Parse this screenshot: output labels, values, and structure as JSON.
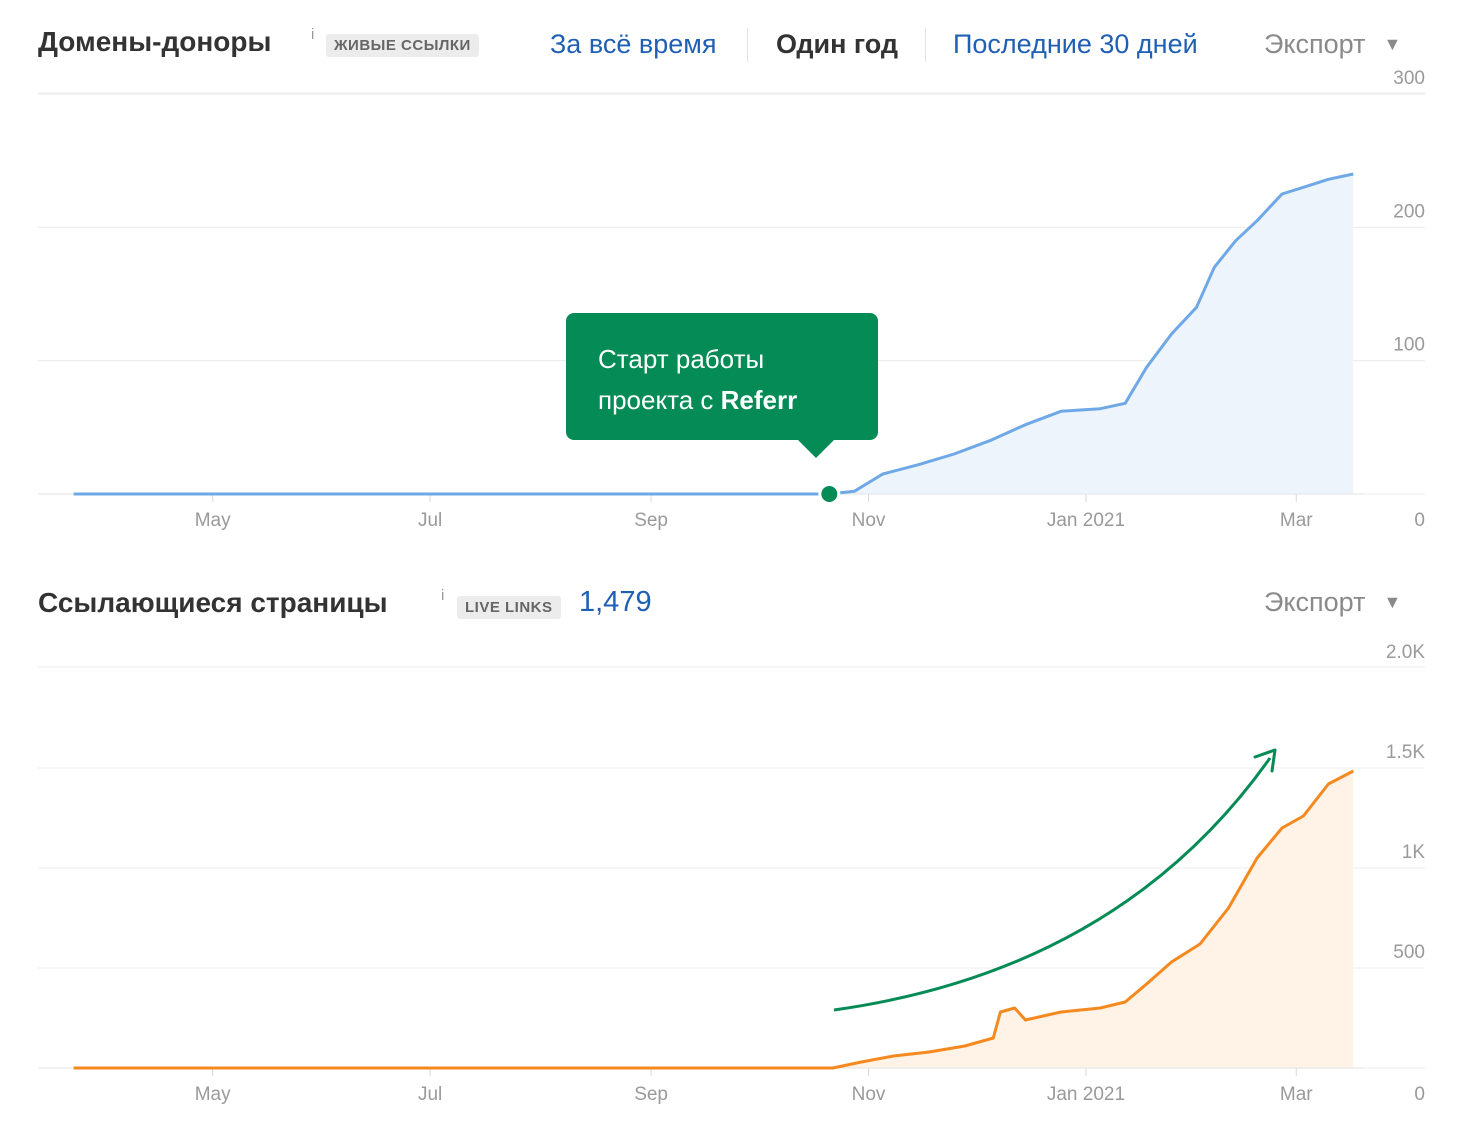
{
  "panel1": {
    "title": "Домены-доноры",
    "info": "i",
    "badge": "ЖИВЫЕ ССЫЛКИ",
    "tabs": [
      "За всё время",
      "Один год",
      "Последние 30 дней"
    ],
    "active_tab": "Один год",
    "export": "Экспорт"
  },
  "tooltip": {
    "line1": "Старт работы",
    "line2_prefix": "проекта с ",
    "line2_bold": "Referr",
    "accent": "#058b55"
  },
  "panel2": {
    "title": "Ссылающиеся страницы",
    "info": "i",
    "badge": "LIVE LINKS",
    "count": "1,479",
    "export": "Экспорт"
  },
  "chart_data": [
    {
      "type": "area",
      "title": "Домены-доноры",
      "x_labels": [
        "May",
        "Jul",
        "Sep",
        "Nov",
        "Jan 2021",
        "Mar"
      ],
      "y_ticks": [
        "0",
        "100",
        "200",
        "300"
      ],
      "ylim": [
        0,
        300
      ],
      "color": "#6fa8e6",
      "fill": "#eef4fc",
      "grid": true,
      "annotation_marker": "2020-10-21",
      "series": [
        {
          "x": [
            "2020-03-23",
            "2020-10-21",
            "2020-10-28",
            "2020-11-05",
            "2020-11-15",
            "2020-11-25",
            "2020-12-05",
            "2020-12-15",
            "2020-12-25",
            "2021-01-05",
            "2021-01-12",
            "2021-01-18",
            "2021-01-25",
            "2021-02-01",
            "2021-02-06",
            "2021-02-12",
            "2021-02-18",
            "2021-02-25",
            "2021-03-03",
            "2021-03-10",
            "2021-03-17"
          ],
          "y": [
            0,
            0,
            2,
            15,
            22,
            30,
            40,
            52,
            62,
            64,
            68,
            95,
            120,
            140,
            170,
            190,
            205,
            225,
            230,
            236,
            240
          ]
        }
      ]
    },
    {
      "type": "area",
      "title": "Ссылающиеся страницы",
      "x_labels": [
        "May",
        "Jul",
        "Sep",
        "Nov",
        "Jan 2021",
        "Mar"
      ],
      "y_ticks": [
        "0",
        "500",
        "1K",
        "1.5K",
        "2.0K"
      ],
      "ylim": [
        0,
        2000
      ],
      "color": "#f5891f",
      "fill": "#fef3e6",
      "grid": true,
      "trend_arrow_color": "#058b55",
      "series": [
        {
          "x": [
            "2020-03-23",
            "2020-10-22",
            "2020-10-30",
            "2020-11-08",
            "2020-11-18",
            "2020-11-28",
            "2020-12-06",
            "2020-12-08",
            "2020-12-12",
            "2020-12-15",
            "2020-12-25",
            "2021-01-05",
            "2021-01-12",
            "2021-01-18",
            "2021-01-25",
            "2021-02-02",
            "2021-02-10",
            "2021-02-18",
            "2021-02-25",
            "2021-03-03",
            "2021-03-10",
            "2021-03-17"
          ],
          "y": [
            0,
            0,
            30,
            60,
            80,
            110,
            150,
            280,
            300,
            240,
            280,
            300,
            330,
            420,
            530,
            620,
            800,
            1050,
            1200,
            1260,
            1420,
            1485
          ]
        }
      ]
    }
  ]
}
